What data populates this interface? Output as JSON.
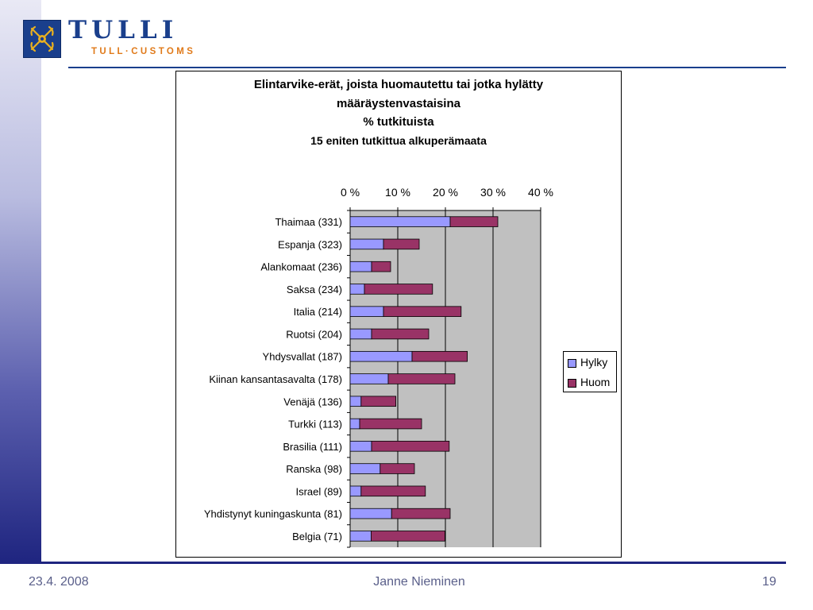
{
  "brand": {
    "name": "TULLI",
    "subtitle": "TULL·CUSTOMS",
    "logo_icon": "customs-emblem-icon",
    "color_primary": "#1a3f8c",
    "color_accent": "#e07a1a"
  },
  "footer": {
    "date": "23.4. 2008",
    "author": "Janne Nieminen",
    "page": "19"
  },
  "chart_data": {
    "type": "bar",
    "orientation": "horizontal",
    "stacked": true,
    "title_lines": [
      "Elintarvike-erät, joista huomautettu tai jotka hylätty",
      "määräystenvastaisina",
      "% tutkituista",
      "15 eniten tutkittua alkuperämaata"
    ],
    "categories": [
      "Thaimaa (331)",
      "Espanja (323)",
      "Alankomaat (236)",
      "Saksa (234)",
      "Italia (214)",
      "Ruotsi (204)",
      "Yhdysvallat (187)",
      "Kiinan kansantasavalta (178)",
      "Venäjä (136)",
      "Turkki (113)",
      "Brasilia (111)",
      "Ranska (98)",
      "Israel (89)",
      "Yhdistynyt kuningaskunta (81)",
      "Belgia (71)"
    ],
    "series": [
      {
        "name": "Hylky",
        "color": "#9999ff",
        "values": [
          21,
          7,
          4.5,
          3,
          7,
          4.5,
          13,
          8,
          2.3,
          2,
          4.5,
          6.3,
          2.3,
          8.7,
          4.4
        ]
      },
      {
        "name": "Huom",
        "color": "#993366",
        "values": [
          10,
          7.5,
          4,
          14.3,
          16.3,
          12,
          11.6,
          14,
          7.3,
          13,
          16.3,
          7.2,
          13.5,
          12.3,
          15.5
        ]
      }
    ],
    "xlim": [
      0,
      40
    ],
    "x_ticks": [
      "0 %",
      "10 %",
      "20 %",
      "30 %",
      "40 %"
    ],
    "x_axis_position": "top",
    "plot_background": "#c0c0c0",
    "grid": true,
    "legend_position": "right"
  }
}
